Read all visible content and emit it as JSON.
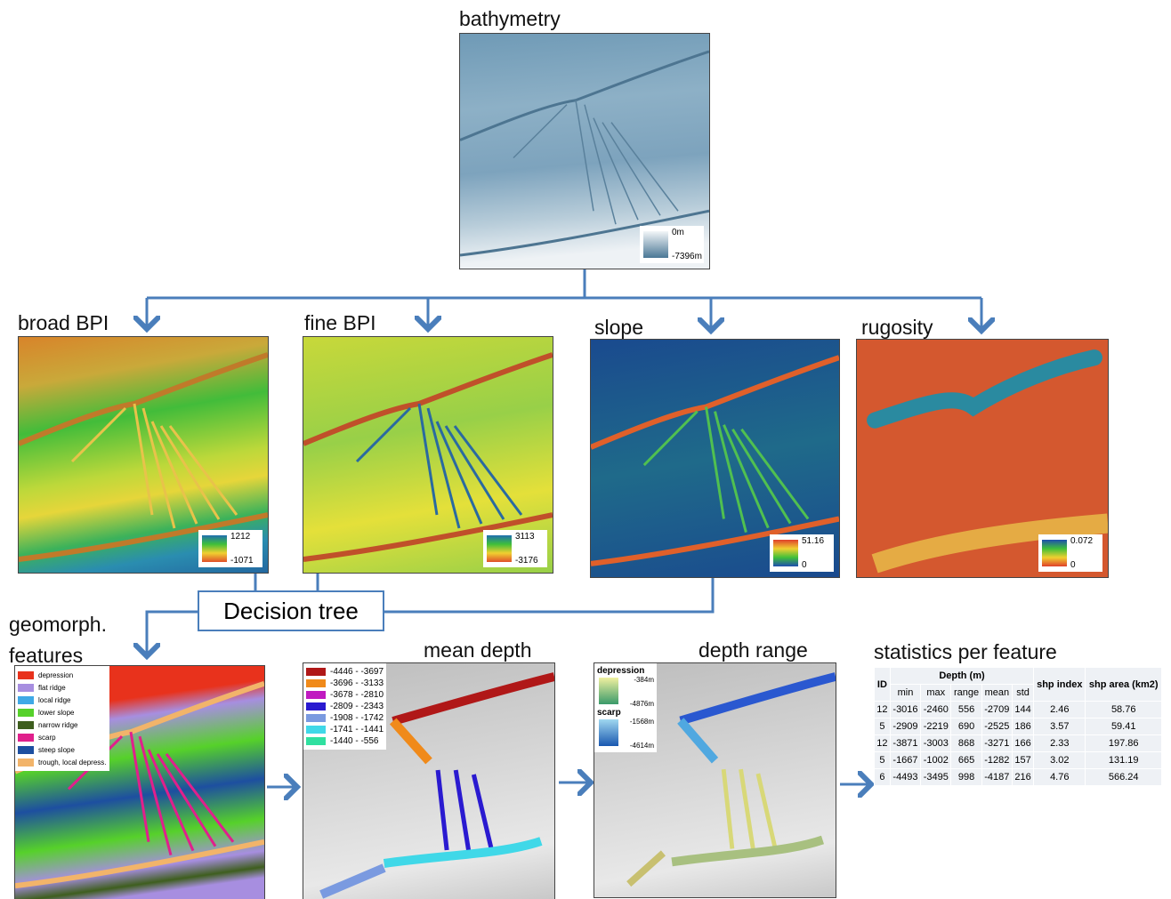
{
  "top": {
    "label": "bathymetry",
    "legend": [
      "0m",
      "-7396m"
    ]
  },
  "layers": [
    {
      "label": "broad BPI",
      "legend": [
        "1212",
        "-1071"
      ]
    },
    {
      "label": "fine BPI",
      "legend": [
        "3113",
        "-3176"
      ]
    },
    {
      "label": "slope",
      "legend": [
        "51.16",
        "0"
      ]
    },
    {
      "label": "rugosity",
      "legend": [
        "0.072",
        "0"
      ]
    }
  ],
  "decision": "Decision tree",
  "geomorph": {
    "label": "geomorph. features",
    "legend": [
      "depression",
      "flat ridge",
      "local ridge",
      "lower slope",
      "narrow ridge",
      "scarp",
      "steep slope",
      "trough, local depress."
    ]
  },
  "mean_depth": {
    "label": "mean depth",
    "legend": [
      "-4446 - -3697",
      "-3696 - -3133",
      "-3678 - -2810",
      "-2809 - -2343",
      "-1908 - -1742",
      "-1741 - -1441",
      "-1440 - -556"
    ]
  },
  "depth_range": {
    "label": "depth range",
    "legend": [
      {
        "name": "depression",
        "max": "-384m",
        "min": "-4876m"
      },
      {
        "name": "scarp",
        "max": "-1568m",
        "min": "-4614m"
      }
    ]
  },
  "stats": {
    "label": "statistics per feature",
    "header": [
      "ID",
      "Depth (m)",
      "shp index",
      "shp area (km2)"
    ],
    "subheader": [
      "min",
      "max",
      "range",
      "mean",
      "std"
    ],
    "rows": [
      [
        "12",
        "-3016",
        "-2460",
        "556",
        "-2709",
        "144",
        "2.46",
        "58.76"
      ],
      [
        "5",
        "-2909",
        "-2219",
        "690",
        "-2525",
        "186",
        "3.57",
        "59.41"
      ],
      [
        "12",
        "-3871",
        "-3003",
        "868",
        "-3271",
        "166",
        "2.33",
        "197.86"
      ],
      [
        "5",
        "-1667",
        "-1002",
        "665",
        "-1282",
        "157",
        "3.02",
        "131.19"
      ],
      [
        "6",
        "-4493",
        "-3495",
        "998",
        "-4187",
        "216",
        "4.76",
        "566.24"
      ]
    ]
  }
}
